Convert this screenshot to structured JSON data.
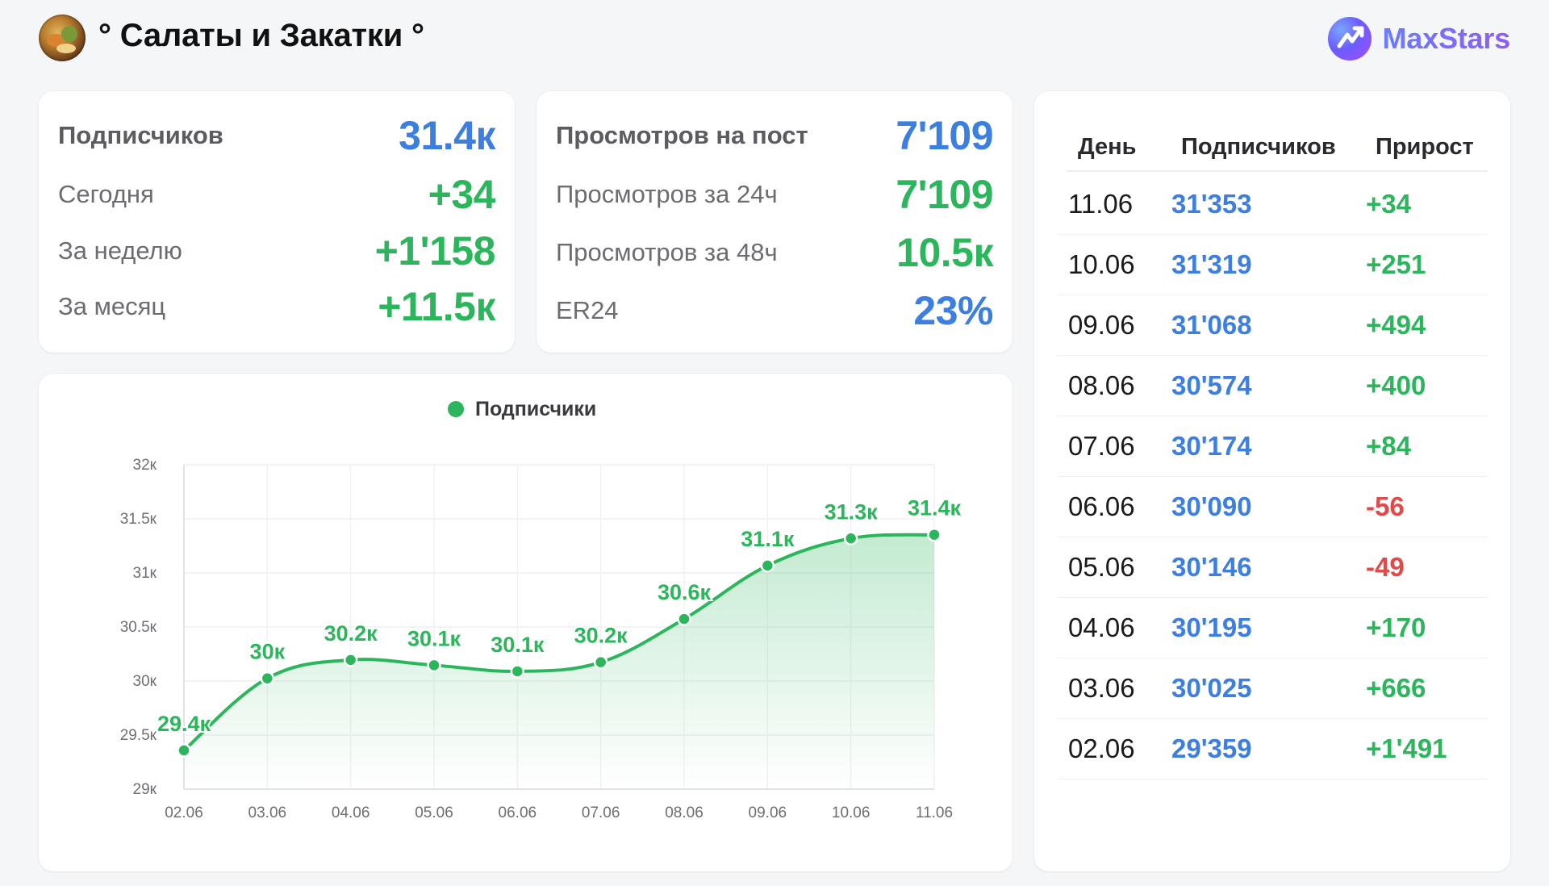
{
  "header": {
    "channel_title": "° Салаты и Закатки °",
    "brand_name": "MaxStars",
    "avatar_icon": "channel-avatar",
    "brand_icon": "maxstars-logo-icon"
  },
  "subscribers_card": {
    "rows": [
      {
        "label": "Подписчиков",
        "value": "31.4к",
        "color": "blue"
      },
      {
        "label": "Сегодня",
        "value": "+34",
        "color": "green"
      },
      {
        "label": "За неделю",
        "value": "+1'158",
        "color": "green"
      },
      {
        "label": "За месяц",
        "value": "+11.5к",
        "color": "green"
      }
    ]
  },
  "views_card": {
    "rows": [
      {
        "label": "Просмотров на пост",
        "value": "7'109",
        "color": "blue"
      },
      {
        "label": "Просмотров за 24ч",
        "value": "7'109",
        "color": "green"
      },
      {
        "label": "Просмотров за 48ч",
        "value": "10.5к",
        "color": "green"
      },
      {
        "label": "ER24",
        "value": "23%",
        "color": "blue"
      }
    ]
  },
  "colors": {
    "blue": "#3d7fe0",
    "green": "#2cb65c",
    "red": "#e24a4a"
  },
  "chart_data": {
    "type": "area",
    "legend": "Подписчики",
    "legend_position": "top-center",
    "x": [
      "02.06",
      "03.06",
      "04.06",
      "05.06",
      "06.06",
      "07.06",
      "08.06",
      "09.06",
      "10.06",
      "11.06"
    ],
    "series": [
      {
        "name": "Подписчики",
        "values": [
          29359,
          30025,
          30195,
          30146,
          30090,
          30174,
          30574,
          31068,
          31319,
          31353
        ],
        "labels": [
          "29.4к",
          "30к",
          "30.2к",
          "30.1к",
          "30.1к",
          "30.2к",
          "30.6к",
          "31.1к",
          "31.3к",
          "31.4к"
        ]
      }
    ],
    "ylim": [
      29000,
      32000
    ],
    "yticks": [
      29000,
      29500,
      30000,
      30500,
      31000,
      31500,
      32000
    ],
    "ytick_labels": [
      "29к",
      "29.5к",
      "30к",
      "30.5к",
      "31к",
      "31.5к",
      "32к"
    ],
    "grid": true
  },
  "table": {
    "headers": [
      "День",
      "Подписчиков",
      "Прирост"
    ],
    "rows": [
      {
        "day": "11.06",
        "subs": "31'353",
        "growth": "+34",
        "color": "green"
      },
      {
        "day": "10.06",
        "subs": "31'319",
        "growth": "+251",
        "color": "green"
      },
      {
        "day": "09.06",
        "subs": "31'068",
        "growth": "+494",
        "color": "green"
      },
      {
        "day": "08.06",
        "subs": "30'574",
        "growth": "+400",
        "color": "green"
      },
      {
        "day": "07.06",
        "subs": "30'174",
        "growth": "+84",
        "color": "green"
      },
      {
        "day": "06.06",
        "subs": "30'090",
        "growth": "-56",
        "color": "red"
      },
      {
        "day": "05.06",
        "subs": "30'146",
        "growth": "-49",
        "color": "red"
      },
      {
        "day": "04.06",
        "subs": "30'195",
        "growth": "+170",
        "color": "green"
      },
      {
        "day": "03.06",
        "subs": "30'025",
        "growth": "+666",
        "color": "green"
      },
      {
        "day": "02.06",
        "subs": "29'359",
        "growth": "+1'491",
        "color": "green"
      }
    ]
  }
}
